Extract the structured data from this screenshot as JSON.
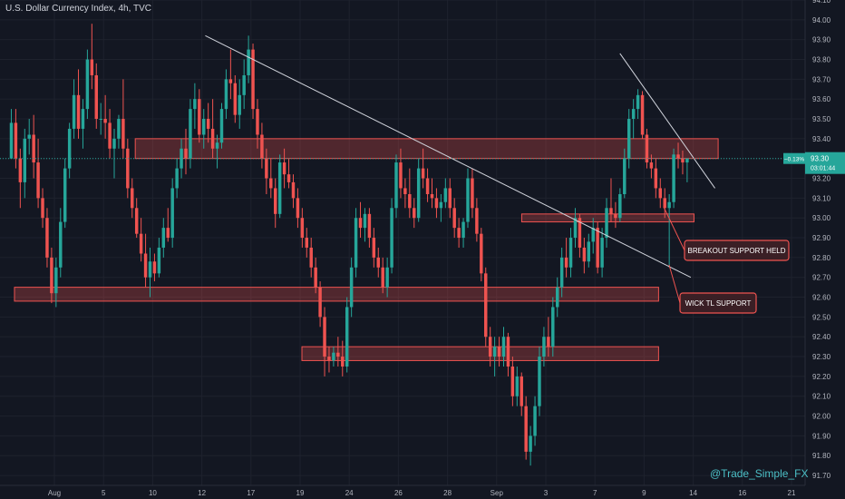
{
  "chart_data": {
    "type": "candlestick",
    "title": "U.S. Dollar Currency Index, 4h, TVC",
    "watermark": "@Trade_Simple_FX",
    "colors": {
      "up": "#26a69a",
      "down": "#ef5350",
      "zone": "#ef5350",
      "trendline": "#d1d4dc",
      "price_tag": "#26a69a",
      "background": "#131722",
      "grid": "#1e222d"
    },
    "y_axis": {
      "min": 91.65,
      "max": 94.1,
      "tick_step": 0.1,
      "labels": [
        "94.10",
        "94.00",
        "93.90",
        "93.80",
        "93.70",
        "93.60",
        "93.50",
        "93.40",
        "93.30",
        "93.20",
        "93.10",
        "93.00",
        "92.90",
        "92.80",
        "92.70",
        "92.60",
        "92.50",
        "92.40",
        "92.30",
        "92.20",
        "92.10",
        "92.00",
        "91.90",
        "91.80",
        "91.70"
      ]
    },
    "x_axis": {
      "labels": [
        "Aug",
        "5",
        "10",
        "12",
        "17",
        "19",
        "24",
        "26",
        "28",
        "Sep",
        "3",
        "7",
        "9",
        "14",
        "16",
        "21"
      ]
    },
    "price_tag": {
      "change": "−0.13%",
      "price": "93.30",
      "countdown": "03:01:44",
      "value": 93.3
    },
    "grid": true,
    "candles": [
      {
        "o": 93.3,
        "h": 93.55,
        "l": 93.3,
        "c": 93.48
      },
      {
        "o": 93.48,
        "h": 93.55,
        "l": 93.25,
        "c": 93.3
      },
      {
        "o": 93.3,
        "h": 93.35,
        "l": 93.05,
        "c": 93.18
      },
      {
        "o": 93.18,
        "h": 93.45,
        "l": 93.1,
        "c": 93.4
      },
      {
        "o": 93.4,
        "h": 93.5,
        "l": 93.32,
        "c": 93.42
      },
      {
        "o": 93.42,
        "h": 93.52,
        "l": 93.2,
        "c": 93.28
      },
      {
        "o": 93.28,
        "h": 93.4,
        "l": 93.05,
        "c": 93.1
      },
      {
        "o": 93.1,
        "h": 93.15,
        "l": 92.95,
        "c": 93.0
      },
      {
        "o": 93.0,
        "h": 93.05,
        "l": 92.75,
        "c": 92.8
      },
      {
        "o": 92.8,
        "h": 92.85,
        "l": 92.57,
        "c": 92.62
      },
      {
        "o": 92.62,
        "h": 92.8,
        "l": 92.55,
        "c": 92.75
      },
      {
        "o": 92.75,
        "h": 93.05,
        "l": 92.7,
        "c": 92.98
      },
      {
        "o": 92.98,
        "h": 93.3,
        "l": 92.95,
        "c": 93.25
      },
      {
        "o": 93.25,
        "h": 93.48,
        "l": 93.2,
        "c": 93.45
      },
      {
        "o": 93.45,
        "h": 93.7,
        "l": 93.4,
        "c": 93.62
      },
      {
        "o": 93.62,
        "h": 93.75,
        "l": 93.4,
        "c": 93.45
      },
      {
        "o": 93.45,
        "h": 93.6,
        "l": 93.35,
        "c": 93.55
      },
      {
        "o": 93.55,
        "h": 93.85,
        "l": 93.5,
        "c": 93.8
      },
      {
        "o": 93.8,
        "h": 93.98,
        "l": 93.65,
        "c": 93.72
      },
      {
        "o": 93.72,
        "h": 93.78,
        "l": 93.45,
        "c": 93.5
      },
      {
        "o": 93.5,
        "h": 93.58,
        "l": 93.42,
        "c": 93.5
      },
      {
        "o": 93.5,
        "h": 93.62,
        "l": 93.4,
        "c": 93.48
      },
      {
        "o": 93.48,
        "h": 93.55,
        "l": 93.3,
        "c": 93.35
      },
      {
        "o": 93.35,
        "h": 93.45,
        "l": 93.2,
        "c": 93.4
      },
      {
        "o": 93.4,
        "h": 93.52,
        "l": 93.35,
        "c": 93.5
      },
      {
        "o": 93.5,
        "h": 93.7,
        "l": 93.3,
        "c": 93.35
      },
      {
        "o": 93.35,
        "h": 93.4,
        "l": 93.1,
        "c": 93.15
      },
      {
        "o": 93.15,
        "h": 93.2,
        "l": 93.0,
        "c": 93.05
      },
      {
        "o": 93.05,
        "h": 93.1,
        "l": 92.9,
        "c": 92.92
      },
      {
        "o": 92.92,
        "h": 93.0,
        "l": 92.78,
        "c": 92.82
      },
      {
        "o": 92.82,
        "h": 92.92,
        "l": 92.65,
        "c": 92.7
      },
      {
        "o": 92.7,
        "h": 92.85,
        "l": 92.6,
        "c": 92.78
      },
      {
        "o": 92.78,
        "h": 92.82,
        "l": 92.68,
        "c": 92.72
      },
      {
        "o": 92.72,
        "h": 92.9,
        "l": 92.7,
        "c": 92.85
      },
      {
        "o": 92.85,
        "h": 93.0,
        "l": 92.8,
        "c": 92.95
      },
      {
        "o": 92.95,
        "h": 93.05,
        "l": 92.88,
        "c": 92.9
      },
      {
        "o": 92.9,
        "h": 93.2,
        "l": 92.85,
        "c": 93.15
      },
      {
        "o": 93.15,
        "h": 93.3,
        "l": 93.1,
        "c": 93.25
      },
      {
        "o": 93.25,
        "h": 93.4,
        "l": 93.2,
        "c": 93.35
      },
      {
        "o": 93.35,
        "h": 93.45,
        "l": 93.22,
        "c": 93.3
      },
      {
        "o": 93.3,
        "h": 93.6,
        "l": 93.25,
        "c": 93.55
      },
      {
        "o": 93.55,
        "h": 93.68,
        "l": 93.45,
        "c": 93.6
      },
      {
        "o": 93.6,
        "h": 93.65,
        "l": 93.38,
        "c": 93.42
      },
      {
        "o": 93.42,
        "h": 93.55,
        "l": 93.35,
        "c": 93.5
      },
      {
        "o": 93.5,
        "h": 93.58,
        "l": 93.38,
        "c": 93.45
      },
      {
        "o": 93.45,
        "h": 93.6,
        "l": 93.3,
        "c": 93.35
      },
      {
        "o": 93.35,
        "h": 93.42,
        "l": 93.25,
        "c": 93.38
      },
      {
        "o": 93.38,
        "h": 93.58,
        "l": 93.35,
        "c": 93.55
      },
      {
        "o": 93.55,
        "h": 93.75,
        "l": 93.5,
        "c": 93.7
      },
      {
        "o": 93.7,
        "h": 93.85,
        "l": 93.6,
        "c": 93.68
      },
      {
        "o": 93.68,
        "h": 93.72,
        "l": 93.48,
        "c": 93.52
      },
      {
        "o": 93.52,
        "h": 93.7,
        "l": 93.45,
        "c": 93.62
      },
      {
        "o": 93.62,
        "h": 93.8,
        "l": 93.55,
        "c": 93.72
      },
      {
        "o": 93.72,
        "h": 93.92,
        "l": 93.68,
        "c": 93.85
      },
      {
        "o": 93.85,
        "h": 93.88,
        "l": 93.5,
        "c": 93.55
      },
      {
        "o": 93.55,
        "h": 93.6,
        "l": 93.35,
        "c": 93.42
      },
      {
        "o": 93.42,
        "h": 93.48,
        "l": 93.25,
        "c": 93.3
      },
      {
        "o": 93.3,
        "h": 93.35,
        "l": 93.12,
        "c": 93.2
      },
      {
        "o": 93.2,
        "h": 93.3,
        "l": 93.1,
        "c": 93.15
      },
      {
        "o": 93.15,
        "h": 93.2,
        "l": 92.95,
        "c": 93.02
      },
      {
        "o": 93.02,
        "h": 93.32,
        "l": 93.0,
        "c": 93.28
      },
      {
        "o": 93.28,
        "h": 93.35,
        "l": 93.15,
        "c": 93.22
      },
      {
        "o": 93.22,
        "h": 93.3,
        "l": 93.15,
        "c": 93.18
      },
      {
        "o": 93.18,
        "h": 93.22,
        "l": 93.05,
        "c": 93.1
      },
      {
        "o": 93.1,
        "h": 93.15,
        "l": 92.95,
        "c": 93.0
      },
      {
        "o": 93.0,
        "h": 93.05,
        "l": 92.85,
        "c": 92.9
      },
      {
        "o": 92.9,
        "h": 92.95,
        "l": 92.8,
        "c": 92.85
      },
      {
        "o": 92.85,
        "h": 92.9,
        "l": 92.7,
        "c": 92.75
      },
      {
        "o": 92.75,
        "h": 92.8,
        "l": 92.62,
        "c": 92.65
      },
      {
        "o": 92.65,
        "h": 92.68,
        "l": 92.45,
        "c": 92.5
      },
      {
        "o": 92.5,
        "h": 92.55,
        "l": 92.2,
        "c": 92.3
      },
      {
        "o": 92.3,
        "h": 92.35,
        "l": 92.22,
        "c": 92.28
      },
      {
        "o": 92.28,
        "h": 92.35,
        "l": 92.25,
        "c": 92.32
      },
      {
        "o": 92.32,
        "h": 92.4,
        "l": 92.25,
        "c": 92.3
      },
      {
        "o": 92.3,
        "h": 92.38,
        "l": 92.2,
        "c": 92.25
      },
      {
        "o": 92.25,
        "h": 92.6,
        "l": 92.22,
        "c": 92.55
      },
      {
        "o": 92.55,
        "h": 92.8,
        "l": 92.5,
        "c": 92.75
      },
      {
        "o": 92.75,
        "h": 93.05,
        "l": 92.7,
        "c": 93.0
      },
      {
        "o": 93.0,
        "h": 93.08,
        "l": 92.9,
        "c": 92.95
      },
      {
        "o": 92.95,
        "h": 93.05,
        "l": 92.88,
        "c": 93.02
      },
      {
        "o": 93.02,
        "h": 93.05,
        "l": 92.85,
        "c": 92.9
      },
      {
        "o": 92.9,
        "h": 92.95,
        "l": 92.75,
        "c": 92.8
      },
      {
        "o": 92.8,
        "h": 92.85,
        "l": 92.7,
        "c": 92.75
      },
      {
        "o": 92.75,
        "h": 92.8,
        "l": 92.62,
        "c": 92.65
      },
      {
        "o": 92.65,
        "h": 92.8,
        "l": 92.6,
        "c": 92.75
      },
      {
        "o": 92.75,
        "h": 93.1,
        "l": 92.72,
        "c": 93.05
      },
      {
        "o": 93.05,
        "h": 93.32,
        "l": 93.0,
        "c": 93.28
      },
      {
        "o": 93.28,
        "h": 93.35,
        "l": 93.1,
        "c": 93.15
      },
      {
        "o": 93.15,
        "h": 93.2,
        "l": 93.05,
        "c": 93.12
      },
      {
        "o": 93.12,
        "h": 93.25,
        "l": 93.0,
        "c": 93.05
      },
      {
        "o": 93.05,
        "h": 93.1,
        "l": 92.95,
        "c": 93.0
      },
      {
        "o": 93.0,
        "h": 93.3,
        "l": 92.98,
        "c": 93.25
      },
      {
        "o": 93.25,
        "h": 93.35,
        "l": 93.15,
        "c": 93.2
      },
      {
        "o": 93.2,
        "h": 93.25,
        "l": 93.08,
        "c": 93.12
      },
      {
        "o": 93.12,
        "h": 93.2,
        "l": 93.05,
        "c": 93.1
      },
      {
        "o": 93.1,
        "h": 93.15,
        "l": 93.0,
        "c": 93.05
      },
      {
        "o": 93.05,
        "h": 93.12,
        "l": 92.98,
        "c": 93.08
      },
      {
        "o": 93.08,
        "h": 93.2,
        "l": 93.05,
        "c": 93.15
      },
      {
        "o": 93.15,
        "h": 93.2,
        "l": 93.0,
        "c": 93.05
      },
      {
        "o": 93.05,
        "h": 93.1,
        "l": 92.9,
        "c": 92.95
      },
      {
        "o": 92.95,
        "h": 93.0,
        "l": 92.85,
        "c": 92.9
      },
      {
        "o": 92.9,
        "h": 93.0,
        "l": 92.85,
        "c": 92.98
      },
      {
        "o": 92.98,
        "h": 93.25,
        "l": 92.95,
        "c": 93.2
      },
      {
        "o": 93.2,
        "h": 93.25,
        "l": 93.0,
        "c": 93.05
      },
      {
        "o": 93.05,
        "h": 93.1,
        "l": 92.88,
        "c": 92.92
      },
      {
        "o": 92.92,
        "h": 92.95,
        "l": 92.68,
        "c": 92.72
      },
      {
        "o": 92.72,
        "h": 92.75,
        "l": 92.35,
        "c": 92.4
      },
      {
        "o": 92.4,
        "h": 92.45,
        "l": 92.25,
        "c": 92.3
      },
      {
        "o": 92.3,
        "h": 92.4,
        "l": 92.2,
        "c": 92.35
      },
      {
        "o": 92.35,
        "h": 92.4,
        "l": 92.25,
        "c": 92.3
      },
      {
        "o": 92.3,
        "h": 92.45,
        "l": 92.25,
        "c": 92.4
      },
      {
        "o": 92.4,
        "h": 92.42,
        "l": 92.2,
        "c": 92.25
      },
      {
        "o": 92.25,
        "h": 92.3,
        "l": 92.05,
        "c": 92.1
      },
      {
        "o": 92.1,
        "h": 92.25,
        "l": 92.05,
        "c": 92.2
      },
      {
        "o": 92.2,
        "h": 92.22,
        "l": 92.0,
        "c": 92.05
      },
      {
        "o": 92.05,
        "h": 92.1,
        "l": 91.78,
        "c": 91.82
      },
      {
        "o": 91.82,
        "h": 91.95,
        "l": 91.75,
        "c": 91.9
      },
      {
        "o": 91.9,
        "h": 92.1,
        "l": 91.85,
        "c": 92.05
      },
      {
        "o": 92.05,
        "h": 92.35,
        "l": 92.0,
        "c": 92.3
      },
      {
        "o": 92.3,
        "h": 92.45,
        "l": 92.25,
        "c": 92.4
      },
      {
        "o": 92.4,
        "h": 92.5,
        "l": 92.3,
        "c": 92.35
      },
      {
        "o": 92.35,
        "h": 92.6,
        "l": 92.3,
        "c": 92.55
      },
      {
        "o": 92.55,
        "h": 92.7,
        "l": 92.5,
        "c": 92.65
      },
      {
        "o": 92.65,
        "h": 92.85,
        "l": 92.6,
        "c": 92.8
      },
      {
        "o": 92.8,
        "h": 92.9,
        "l": 92.7,
        "c": 92.75
      },
      {
        "o": 92.75,
        "h": 92.95,
        "l": 92.7,
        "c": 92.9
      },
      {
        "o": 92.9,
        "h": 93.05,
        "l": 92.85,
        "c": 93.0
      },
      {
        "o": 93.0,
        "h": 93.02,
        "l": 92.8,
        "c": 92.85
      },
      {
        "o": 92.85,
        "h": 92.9,
        "l": 92.72,
        "c": 92.78
      },
      {
        "o": 92.78,
        "h": 92.92,
        "l": 92.75,
        "c": 92.88
      },
      {
        "o": 92.88,
        "h": 93.0,
        "l": 92.82,
        "c": 92.95
      },
      {
        "o": 92.95,
        "h": 92.98,
        "l": 92.72,
        "c": 92.75
      },
      {
        "o": 92.75,
        "h": 92.95,
        "l": 92.7,
        "c": 92.9
      },
      {
        "o": 92.9,
        "h": 93.1,
        "l": 92.85,
        "c": 93.05
      },
      {
        "o": 93.05,
        "h": 93.2,
        "l": 92.98,
        "c": 93.02
      },
      {
        "o": 93.02,
        "h": 93.08,
        "l": 92.95,
        "c": 93.0
      },
      {
        "o": 93.0,
        "h": 93.15,
        "l": 92.98,
        "c": 93.12
      },
      {
        "o": 93.12,
        "h": 93.35,
        "l": 93.1,
        "c": 93.3
      },
      {
        "o": 93.3,
        "h": 93.55,
        "l": 93.25,
        "c": 93.5
      },
      {
        "o": 93.5,
        "h": 93.6,
        "l": 93.4,
        "c": 93.55
      },
      {
        "o": 93.55,
        "h": 93.65,
        "l": 93.5,
        "c": 93.62
      },
      {
        "o": 93.62,
        "h": 93.64,
        "l": 93.4,
        "c": 93.42
      },
      {
        "o": 93.42,
        "h": 93.45,
        "l": 93.25,
        "c": 93.28
      },
      {
        "o": 93.28,
        "h": 93.32,
        "l": 93.2,
        "c": 93.25
      },
      {
        "o": 93.25,
        "h": 93.3,
        "l": 93.1,
        "c": 93.15
      },
      {
        "o": 93.15,
        "h": 93.2,
        "l": 93.05,
        "c": 93.1
      },
      {
        "o": 93.1,
        "h": 93.15,
        "l": 93.0,
        "c": 93.05
      },
      {
        "o": 93.05,
        "h": 93.12,
        "l": 92.75,
        "c": 93.08
      },
      {
        "o": 93.08,
        "h": 93.35,
        "l": 93.05,
        "c": 93.32
      },
      {
        "o": 93.32,
        "h": 93.38,
        "l": 93.25,
        "c": 93.3
      },
      {
        "o": 93.3,
        "h": 93.34,
        "l": 93.22,
        "c": 93.28
      },
      {
        "o": 93.28,
        "h": 93.3,
        "l": 93.18,
        "c": 93.3
      }
    ],
    "zones": [
      {
        "top": 93.4,
        "bottom": 93.3,
        "from": 0.168,
        "to": 0.892
      },
      {
        "top": 93.02,
        "bottom": 92.98,
        "from": 0.648,
        "to": 0.862
      },
      {
        "top": 92.65,
        "bottom": 92.58,
        "from": 0.018,
        "to": 0.818
      },
      {
        "top": 92.35,
        "bottom": 92.28,
        "from": 0.375,
        "to": 0.818
      }
    ],
    "trendlines": [
      {
        "from": [
          0.255,
          93.92
        ],
        "to": [
          0.858,
          92.7
        ]
      },
      {
        "from": [
          0.77,
          93.83
        ],
        "to": [
          0.888,
          93.15
        ]
      }
    ],
    "annotations": [
      {
        "text": "BREAKOUT SUPPORT HELD",
        "value": 92.85
      },
      {
        "text": "WICK TL SUPPORT",
        "value": 92.58
      }
    ]
  }
}
